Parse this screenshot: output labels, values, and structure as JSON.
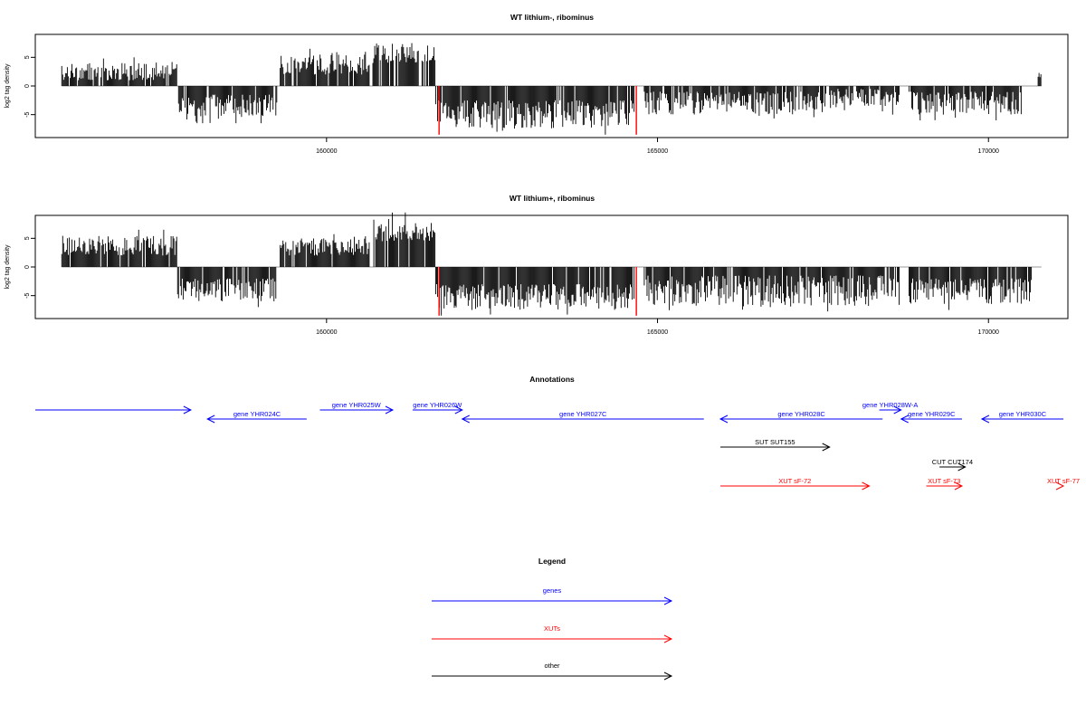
{
  "chart_data": [
    {
      "type": "bar",
      "title": "WT lithium-, ribominus",
      "ylabel": "log2 tag density",
      "xlim": [
        155600,
        171200
      ],
      "ylim": [
        -9,
        9
      ],
      "xticks": [
        160000,
        165000,
        170000
      ],
      "yticks": [
        -5,
        0,
        5
      ],
      "regions": [
        {
          "start": 156000,
          "end": 157740,
          "sign": 1,
          "min": 1,
          "max": 4,
          "color": "#000000"
        },
        {
          "start": 157750,
          "end": 159250,
          "sign": -1,
          "min": 1.5,
          "max": 5.5,
          "color": "#000000"
        },
        {
          "start": 159300,
          "end": 160650,
          "sign": 1,
          "min": 2,
          "max": 5.5,
          "color": "#000000"
        },
        {
          "start": 160700,
          "end": 161650,
          "sign": 1,
          "min": 4,
          "max": 7.5,
          "color": "#000000"
        },
        {
          "start": 161650,
          "end": 164650,
          "sign": -1,
          "min": 2.5,
          "max": 7.5,
          "color": "#000000"
        },
        {
          "start": 164800,
          "end": 167550,
          "sign": -1,
          "min": 1,
          "max": 5,
          "color": "#000000"
        },
        {
          "start": 167600,
          "end": 168650,
          "sign": -1,
          "min": 0.5,
          "max": 4,
          "color": "#000000"
        },
        {
          "start": 168800,
          "end": 170500,
          "sign": -1,
          "min": 1,
          "max": 5,
          "color": "#000000"
        },
        {
          "start": 170750,
          "end": 170800,
          "sign": 1,
          "min": 1.5,
          "max": 2.5,
          "color": "#000000"
        }
      ],
      "highlights": [
        {
          "x": 161700,
          "value": -8.5,
          "color": "#ff0000"
        },
        {
          "x": 164680,
          "value": -8.5,
          "color": "#ff0000"
        }
      ]
    },
    {
      "type": "bar",
      "title": "WT lithium+, ribominus",
      "ylabel": "log2 tag density",
      "xlim": [
        155600,
        171200
      ],
      "ylim": [
        -9,
        9
      ],
      "xticks": [
        160000,
        165000,
        170000
      ],
      "yticks": [
        -5,
        0,
        5
      ],
      "regions": [
        {
          "start": 156000,
          "end": 157740,
          "sign": 1,
          "min": 2,
          "max": 5.5,
          "color": "#000000"
        },
        {
          "start": 157750,
          "end": 159250,
          "sign": -1,
          "min": 2,
          "max": 6,
          "color": "#000000"
        },
        {
          "start": 159300,
          "end": 160650,
          "sign": 1,
          "min": 2,
          "max": 5,
          "color": "#000000"
        },
        {
          "start": 160700,
          "end": 161650,
          "sign": 1,
          "min": 4.5,
          "max": 8.5,
          "color": "#000000"
        },
        {
          "start": 161650,
          "end": 164650,
          "sign": -1,
          "min": 3,
          "max": 7.5,
          "color": "#000000"
        },
        {
          "start": 164800,
          "end": 168650,
          "sign": -1,
          "min": 1.5,
          "max": 7,
          "color": "#000000"
        },
        {
          "start": 168800,
          "end": 170650,
          "sign": -1,
          "min": 2,
          "max": 6.5,
          "color": "#000000"
        }
      ],
      "highlights": [
        {
          "x": 161700,
          "value": -8.5,
          "color": "#ff0000"
        },
        {
          "x": 164680,
          "value": -8.5,
          "color": "#ff0000"
        }
      ]
    }
  ],
  "annotations": {
    "title": "Annotations",
    "items": [
      {
        "label": "",
        "start": 155600,
        "end": 157950,
        "direction": "right",
        "row": 0,
        "color": "#0000ff"
      },
      {
        "label": "gene YHR024C",
        "start": 158200,
        "end": 159700,
        "direction": "left",
        "row": 1,
        "color": "#0000ff"
      },
      {
        "label": "gene YHR025W",
        "start": 159900,
        "end": 161000,
        "direction": "right",
        "row": 0,
        "color": "#0000ff"
      },
      {
        "label": "gene YHR026W",
        "start": 161300,
        "end": 162050,
        "direction": "right",
        "row": 0,
        "color": "#0000ff"
      },
      {
        "label": "gene YHR027C",
        "start": 162050,
        "end": 165700,
        "direction": "left",
        "row": 1,
        "color": "#0000ff"
      },
      {
        "label": "gene YHR028C",
        "start": 165950,
        "end": 168400,
        "direction": "left",
        "row": 1,
        "color": "#0000ff"
      },
      {
        "label": "gene YHR028W-A",
        "start": 168350,
        "end": 168680,
        "direction": "right",
        "row": 0,
        "color": "#0000ff"
      },
      {
        "label": "gene YHR029C",
        "start": 168680,
        "end": 169600,
        "direction": "left",
        "row": 1,
        "color": "#0000ff"
      },
      {
        "label": "gene YHR030C",
        "start": 169900,
        "end": 171200,
        "direction": "left",
        "row": 1,
        "color": "#0000ff"
      },
      {
        "label": "SUT SUT155",
        "start": 165950,
        "end": 167600,
        "direction": "right",
        "row": 2,
        "color": "#000000"
      },
      {
        "label": "CUT CUT174",
        "start": 169260,
        "end": 169650,
        "direction": "right",
        "row": 3,
        "color": "#000000"
      },
      {
        "label": "XUT sF-72",
        "start": 165950,
        "end": 168200,
        "direction": "right",
        "row": 4,
        "color": "#ff0000"
      },
      {
        "label": "XUT sF-73",
        "start": 169060,
        "end": 169600,
        "direction": "right",
        "row": 4,
        "color": "#ff0000"
      },
      {
        "label": "XUT sF-77",
        "start": 171750,
        "end": 172300,
        "direction": "right",
        "row": 4,
        "color": "#ff0000"
      }
    ]
  },
  "legend": {
    "title": "Legend",
    "items": [
      {
        "label": "genes",
        "color": "#0000ff"
      },
      {
        "label": "XUTs",
        "color": "#ff0000"
      },
      {
        "label": "other",
        "color": "#000000"
      }
    ]
  }
}
